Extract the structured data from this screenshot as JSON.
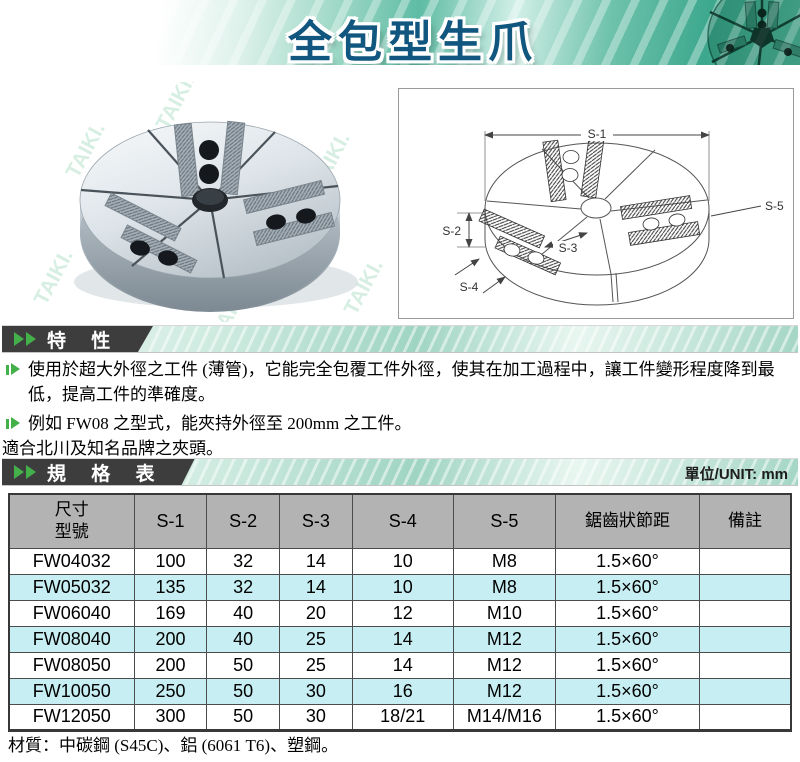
{
  "header": {
    "title": "全包型生爪"
  },
  "sections": {
    "features": {
      "label": "特 性",
      "bullets": [
        "使用於超大外徑之工件 (薄管)，它能完全包覆工件外徑，使其在加工過程中，讓工件變形程度降到最低，提高工件的準確度。",
        "例如 FW08 之型式，能夾持外徑至 200mm 之工件。"
      ],
      "note": "適合北川及知名品牌之夾頭。"
    },
    "specs": {
      "label": "規 格 表",
      "unit_label": "單位/UNIT: mm"
    }
  },
  "photo": {
    "watermark": "TAIKI."
  },
  "diagram": {
    "s1": "S-1",
    "s2": "S-2",
    "s3": "S-3",
    "s4": "S-4",
    "s5": "S-5"
  },
  "table": {
    "col1_line1": "尺寸",
    "col1_line2": "型號",
    "columns": [
      "S-1",
      "S-2",
      "S-3",
      "S-4",
      "S-5",
      "鋸齒狀節距",
      "備註"
    ],
    "rows": [
      [
        "FW04032",
        "100",
        "32",
        "14",
        "10",
        "M8",
        "1.5×60°",
        ""
      ],
      [
        "FW05032",
        "135",
        "32",
        "14",
        "10",
        "M8",
        "1.5×60°",
        ""
      ],
      [
        "FW06040",
        "169",
        "40",
        "20",
        "12",
        "M10",
        "1.5×60°",
        ""
      ],
      [
        "FW08040",
        "200",
        "40",
        "25",
        "14",
        "M12",
        "1.5×60°",
        ""
      ],
      [
        "FW08050",
        "200",
        "50",
        "25",
        "14",
        "M12",
        "1.5×60°",
        ""
      ],
      [
        "FW10050",
        "250",
        "50",
        "30",
        "16",
        "M12",
        "1.5×60°",
        ""
      ],
      [
        "FW12050",
        "300",
        "50",
        "30",
        "18/21",
        "M14/M16",
        "1.5×60°",
        ""
      ]
    ]
  },
  "footer": {
    "material": "材質：中碳鋼 (S45C)、鋁 (6061 T6)、塑鋼。"
  },
  "colors": {
    "accent_green": "#44b04a",
    "title_blue": "#10567f",
    "bar_charcoal": "#3d3d3d",
    "row_alt": "#c7eef2",
    "table_header_bg": "#b3b3b3",
    "banner_teal": "#4db39a"
  }
}
